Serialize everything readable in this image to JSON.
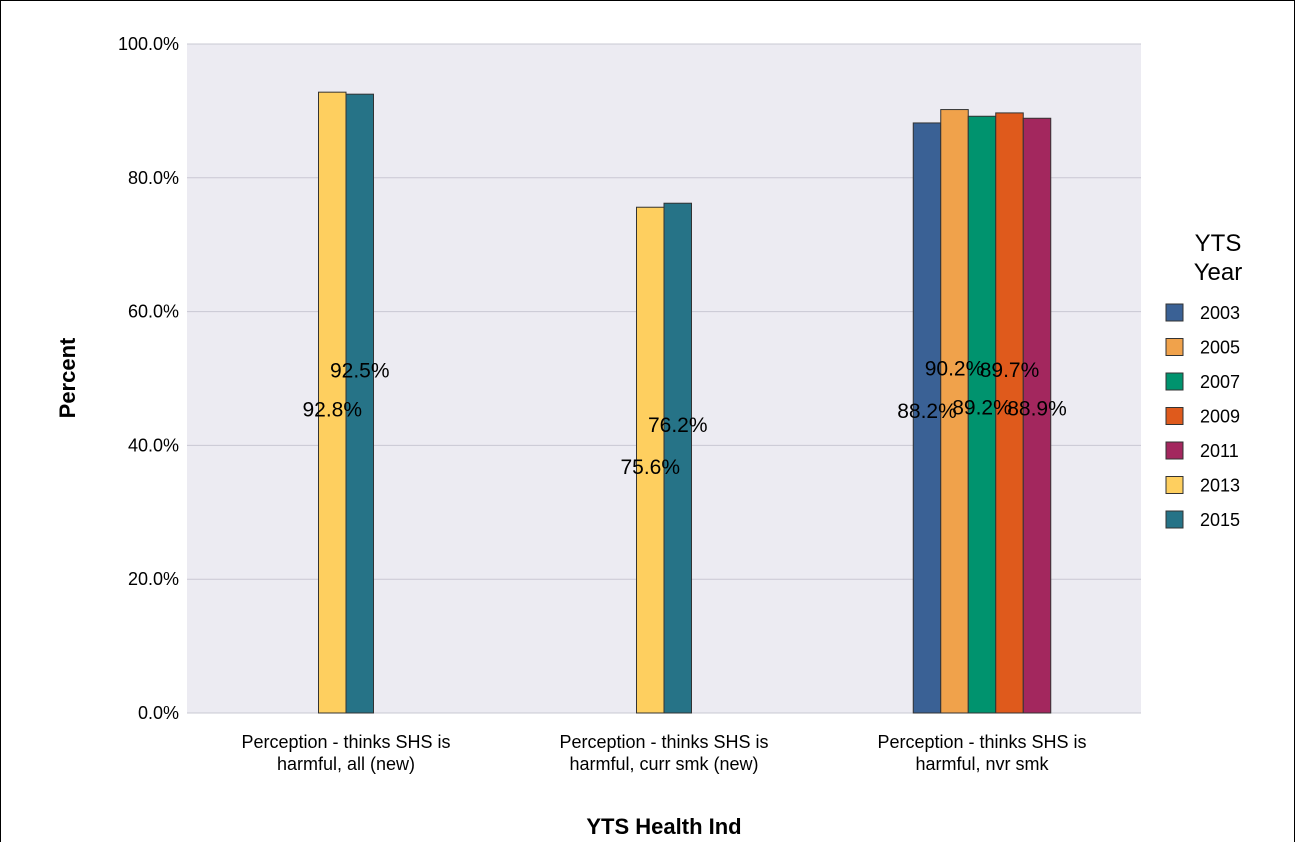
{
  "chart_data": {
    "type": "bar",
    "xlabel": "YTS Health Ind",
    "ylabel": "Percent",
    "ylim": [
      0,
      100
    ],
    "yticks": [
      "0.0%",
      "20.0%",
      "40.0%",
      "60.0%",
      "80.0%",
      "100.0%"
    ],
    "categories": [
      [
        "Perception - thinks SHS is",
        "harmful, all (new)"
      ],
      [
        "Perception - thinks SHS is",
        "harmful, curr smk (new)"
      ],
      [
        "Perception - thinks SHS is",
        "harmful, nvr smk"
      ]
    ],
    "legend": {
      "title": [
        "YTS",
        "Year"
      ],
      "position": "right"
    },
    "grid": true,
    "series": [
      {
        "name": "2003",
        "color": "#3A6195",
        "values": [
          null,
          null,
          88.2
        ],
        "labels": [
          null,
          null,
          "88.2%"
        ]
      },
      {
        "name": "2005",
        "color": "#F0A24B",
        "values": [
          null,
          null,
          90.2
        ],
        "labels": [
          null,
          null,
          "90.2%"
        ]
      },
      {
        "name": "2007",
        "color": "#00936E",
        "values": [
          null,
          null,
          89.2
        ],
        "labels": [
          null,
          null,
          "89.2%"
        ]
      },
      {
        "name": "2009",
        "color": "#DF5A1C",
        "values": [
          null,
          null,
          89.7
        ],
        "labels": [
          null,
          null,
          "89.7%"
        ]
      },
      {
        "name": "2011",
        "color": "#A3275E",
        "values": [
          null,
          null,
          88.9
        ],
        "labels": [
          null,
          null,
          "88.9%"
        ]
      },
      {
        "name": "2013",
        "color": "#FECF5F",
        "values": [
          92.8,
          75.6,
          null
        ],
        "labels": [
          "92.8%",
          "75.6%",
          null
        ]
      },
      {
        "name": "2015",
        "color": "#267387",
        "values": [
          92.5,
          76.2,
          null
        ],
        "labels": [
          "92.5%",
          "76.2%",
          null
        ]
      }
    ]
  }
}
